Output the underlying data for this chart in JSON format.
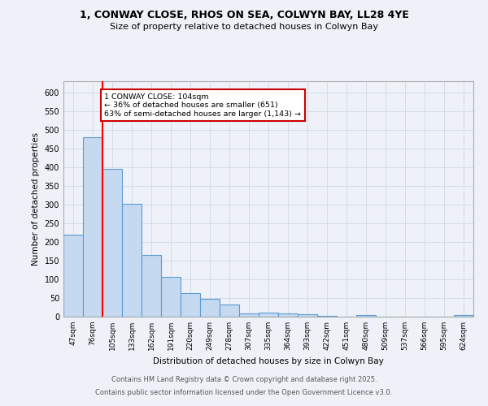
{
  "title1": "1, CONWAY CLOSE, RHOS ON SEA, COLWYN BAY, LL28 4YE",
  "title2": "Size of property relative to detached houses in Colwyn Bay",
  "xlabel": "Distribution of detached houses by size in Colwyn Bay",
  "ylabel": "Number of detached properties",
  "categories": [
    "47sqm",
    "76sqm",
    "105sqm",
    "133sqm",
    "162sqm",
    "191sqm",
    "220sqm",
    "249sqm",
    "278sqm",
    "307sqm",
    "335sqm",
    "364sqm",
    "393sqm",
    "422sqm",
    "451sqm",
    "480sqm",
    "509sqm",
    "537sqm",
    "566sqm",
    "595sqm",
    "624sqm"
  ],
  "values": [
    220,
    480,
    395,
    303,
    165,
    106,
    64,
    47,
    32,
    9,
    10,
    9,
    7,
    3,
    1,
    4,
    1,
    0,
    1,
    0,
    4
  ],
  "bar_color": "#c5d9f0",
  "bar_edge_color": "#5b9bd5",
  "grid_color": "#d0d8e8",
  "background_color": "#eef2f8",
  "red_line_index": 2,
  "annotation_line1": "1 CONWAY CLOSE: 104sqm",
  "annotation_line2": "← 36% of detached houses are smaller (651)",
  "annotation_line3": "63% of semi-detached houses are larger (1,143) →",
  "annotation_box_color": "#ffffff",
  "annotation_box_edge": "#cc0000",
  "footer1": "Contains HM Land Registry data © Crown copyright and database right 2025.",
  "footer2": "Contains public sector information licensed under the Open Government Licence v3.0.",
  "ylim": [
    0,
    630
  ],
  "yticks": [
    0,
    50,
    100,
    150,
    200,
    250,
    300,
    350,
    400,
    450,
    500,
    550,
    600
  ]
}
